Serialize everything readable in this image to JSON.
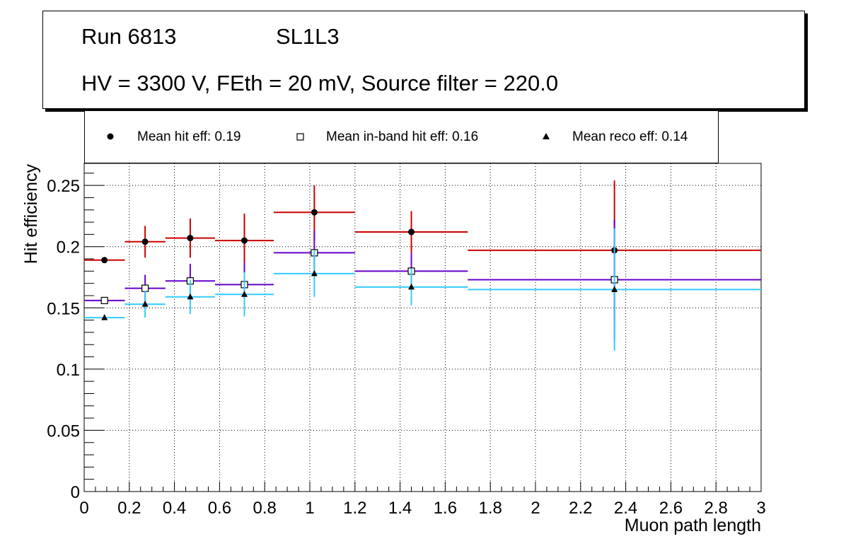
{
  "title": {
    "run": "Run 6813",
    "layer": "SL1L3",
    "conditions": "HV = 3300 V, FEth = 20 mV, Source filter = 220.0"
  },
  "legend": {
    "hit": "Mean hit  eff: 0.19",
    "inband": "Mean in-band hit eff: 0.16",
    "reco": "Mean reco eff: 0.14"
  },
  "colors": {
    "hit": "#cc0000",
    "inband": "#6600cc",
    "reco": "#33ccff",
    "grid": "#000000"
  },
  "chart_data": {
    "type": "scatter",
    "xlabel": "Muon path length",
    "ylabel": "Hit efficiency",
    "xlim": [
      0,
      3
    ],
    "ylim": [
      0,
      0.268
    ],
    "grid": true,
    "xticks": [
      0,
      0.2,
      0.4,
      0.6,
      0.8,
      1,
      1.2,
      1.4,
      1.6,
      1.8,
      2,
      2.2,
      2.4,
      2.6,
      2.8,
      3
    ],
    "xtick_labels": [
      "0",
      "0.2",
      "0.4",
      "0.6",
      "0.8",
      "1",
      "1.2",
      "1.4",
      "1.6",
      "1.8",
      "2",
      "2.2",
      "2.4",
      "2.6",
      "2.8",
      "3"
    ],
    "yticks": [
      0,
      0.05,
      0.1,
      0.15,
      0.2,
      0.25
    ],
    "ytick_labels": [
      "0",
      "0.05",
      "0.1",
      "0.15",
      "0.2",
      "0.25"
    ],
    "series": [
      {
        "name": "Mean hit  eff: 0.19",
        "key": "hit",
        "marker": "filled-circle",
        "points": [
          {
            "x": 0.09,
            "xlo": 0.0,
            "xhi": 0.18,
            "y": 0.189,
            "ylo": 0.189,
            "yhi": 0.189
          },
          {
            "x": 0.27,
            "xlo": 0.18,
            "xhi": 0.36,
            "y": 0.204,
            "ylo": 0.191,
            "yhi": 0.217
          },
          {
            "x": 0.47,
            "xlo": 0.36,
            "xhi": 0.58,
            "y": 0.207,
            "ylo": 0.191,
            "yhi": 0.223
          },
          {
            "x": 0.71,
            "xlo": 0.58,
            "xhi": 0.84,
            "y": 0.205,
            "ylo": 0.183,
            "yhi": 0.227
          },
          {
            "x": 1.02,
            "xlo": 0.84,
            "xhi": 1.2,
            "y": 0.228,
            "ylo": 0.205,
            "yhi": 0.25
          },
          {
            "x": 1.45,
            "xlo": 1.2,
            "xhi": 1.7,
            "y": 0.212,
            "ylo": 0.195,
            "yhi": 0.229
          },
          {
            "x": 2.35,
            "xlo": 1.7,
            "xhi": 3.0,
            "y": 0.197,
            "ylo": 0.14,
            "yhi": 0.254
          }
        ]
      },
      {
        "name": "Mean in-band hit eff: 0.16",
        "key": "inband",
        "marker": "open-square",
        "points": [
          {
            "x": 0.09,
            "xlo": 0.0,
            "xhi": 0.18,
            "y": 0.156,
            "ylo": 0.156,
            "yhi": 0.156
          },
          {
            "x": 0.27,
            "xlo": 0.18,
            "xhi": 0.36,
            "y": 0.166,
            "ylo": 0.155,
            "yhi": 0.177
          },
          {
            "x": 0.47,
            "xlo": 0.36,
            "xhi": 0.58,
            "y": 0.172,
            "ylo": 0.158,
            "yhi": 0.186
          },
          {
            "x": 0.71,
            "xlo": 0.58,
            "xhi": 0.84,
            "y": 0.169,
            "ylo": 0.151,
            "yhi": 0.187
          },
          {
            "x": 1.02,
            "xlo": 0.84,
            "xhi": 1.2,
            "y": 0.195,
            "ylo": 0.177,
            "yhi": 0.213
          },
          {
            "x": 1.45,
            "xlo": 1.2,
            "xhi": 1.7,
            "y": 0.18,
            "ylo": 0.165,
            "yhi": 0.195
          },
          {
            "x": 2.35,
            "xlo": 1.7,
            "xhi": 3.0,
            "y": 0.173,
            "ylo": 0.124,
            "yhi": 0.222
          }
        ]
      },
      {
        "name": "Mean reco eff: 0.14",
        "key": "reco",
        "marker": "filled-triangle",
        "points": [
          {
            "x": 0.09,
            "xlo": 0.0,
            "xhi": 0.18,
            "y": 0.142,
            "ylo": 0.142,
            "yhi": 0.142
          },
          {
            "x": 0.27,
            "xlo": 0.18,
            "xhi": 0.36,
            "y": 0.153,
            "ylo": 0.142,
            "yhi": 0.164
          },
          {
            "x": 0.47,
            "xlo": 0.36,
            "xhi": 0.58,
            "y": 0.159,
            "ylo": 0.145,
            "yhi": 0.173
          },
          {
            "x": 0.71,
            "xlo": 0.58,
            "xhi": 0.84,
            "y": 0.161,
            "ylo": 0.143,
            "yhi": 0.179
          },
          {
            "x": 1.02,
            "xlo": 0.84,
            "xhi": 1.2,
            "y": 0.178,
            "ylo": 0.159,
            "yhi": 0.197
          },
          {
            "x": 1.45,
            "xlo": 1.2,
            "xhi": 1.7,
            "y": 0.167,
            "ylo": 0.152,
            "yhi": 0.182
          },
          {
            "x": 2.35,
            "xlo": 1.7,
            "xhi": 3.0,
            "y": 0.165,
            "ylo": 0.115,
            "yhi": 0.215
          }
        ]
      }
    ]
  }
}
